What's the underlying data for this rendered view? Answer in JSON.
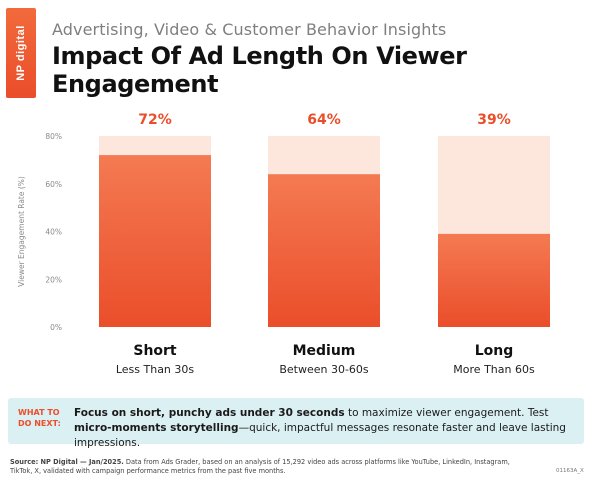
{
  "header": {
    "logo_text": "NP digital",
    "subtitle": "Advertising, Video & Customer Behavior Insights",
    "title": "Impact Of Ad Length On Viewer Engagement"
  },
  "colors": {
    "accent": "#ea4e2a",
    "bar_fill_top": "#f47a52",
    "bar_fill_bottom": "#ea4e2a",
    "bar_track": "#fde6dc",
    "callout_bg": "#dbf0f3"
  },
  "chart_data": {
    "type": "bar",
    "title": "Impact Of Ad Length On Viewer Engagement",
    "ylabel": "Viewer Engagement Rate (%)",
    "xlabel": "",
    "ylim": [
      0,
      80
    ],
    "yticks": [
      0,
      20,
      40,
      60,
      80
    ],
    "ytick_labels": [
      "0%",
      "20%",
      "40%",
      "60%",
      "80%"
    ],
    "categories": [
      "Short",
      "Medium",
      "Long"
    ],
    "category_sublabels": [
      "Less Than 30s",
      "Between 30-60s",
      "More Than 60s"
    ],
    "values": [
      72,
      64,
      39
    ],
    "value_labels": [
      "72%",
      "64%",
      "39%"
    ],
    "grid": false,
    "legend": "none"
  },
  "callout": {
    "label": "WHAT TO DO NEXT:",
    "text_bold_1": "Focus on short, punchy ads under 30 seconds",
    "text_1": " to maximize viewer engagement. Test ",
    "text_bold_2": "micro-moments storytelling",
    "text_2": "—quick, impactful messages resonate faster and leave lasting impressions."
  },
  "source": {
    "label": "Source: NP Digital — Jan/2025.",
    "text": " Data from Ads Grader, based on an analysis of 15,292 video ads across platforms like YouTube, LinkedIn, Instagram, TikTok, X, validated with campaign performance metrics from the past five months."
  },
  "code": "01163A_X"
}
